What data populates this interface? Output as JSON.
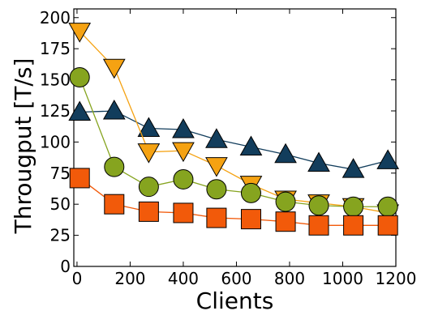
{
  "chart_data": {
    "type": "line",
    "title": "",
    "xlabel": "Clients",
    "ylabel": "Througput [T/s]",
    "xlim": [
      -12,
      1200
    ],
    "ylim": [
      0,
      207
    ],
    "x_ticks": [
      0,
      200,
      400,
      600,
      800,
      1000,
      1200
    ],
    "y_ticks": [
      0,
      25,
      50,
      75,
      100,
      125,
      150,
      175,
      200
    ],
    "grid": false,
    "legend": "none",
    "series": [
      {
        "marker": "triangle-up",
        "color": "#123d5c",
        "x": [
          10,
          140,
          270,
          400,
          525,
          655,
          785,
          910,
          1040,
          1170
        ],
        "values": [
          124,
          125,
          111,
          110,
          102,
          96,
          90,
          83,
          78,
          85
        ]
      },
      {
        "marker": "triangle-down",
        "color": "#f5a212",
        "x": [
          10,
          140,
          270,
          400,
          525,
          655,
          785,
          910,
          1040,
          1170
        ],
        "values": [
          189,
          160,
          92,
          93,
          81,
          66,
          54,
          51,
          48,
          43
        ]
      },
      {
        "marker": "circle",
        "color": "#86a41f",
        "x": [
          10,
          140,
          270,
          400,
          525,
          655,
          785,
          910,
          1040,
          1170
        ],
        "values": [
          152,
          80,
          64,
          70,
          62,
          59,
          52,
          49,
          48,
          48
        ]
      },
      {
        "marker": "square",
        "color": "#f25a0a",
        "x": [
          10,
          140,
          270,
          400,
          525,
          655,
          785,
          910,
          1040,
          1170
        ],
        "values": [
          71,
          50,
          44,
          43,
          39,
          38,
          36,
          33,
          33,
          33
        ]
      }
    ]
  }
}
